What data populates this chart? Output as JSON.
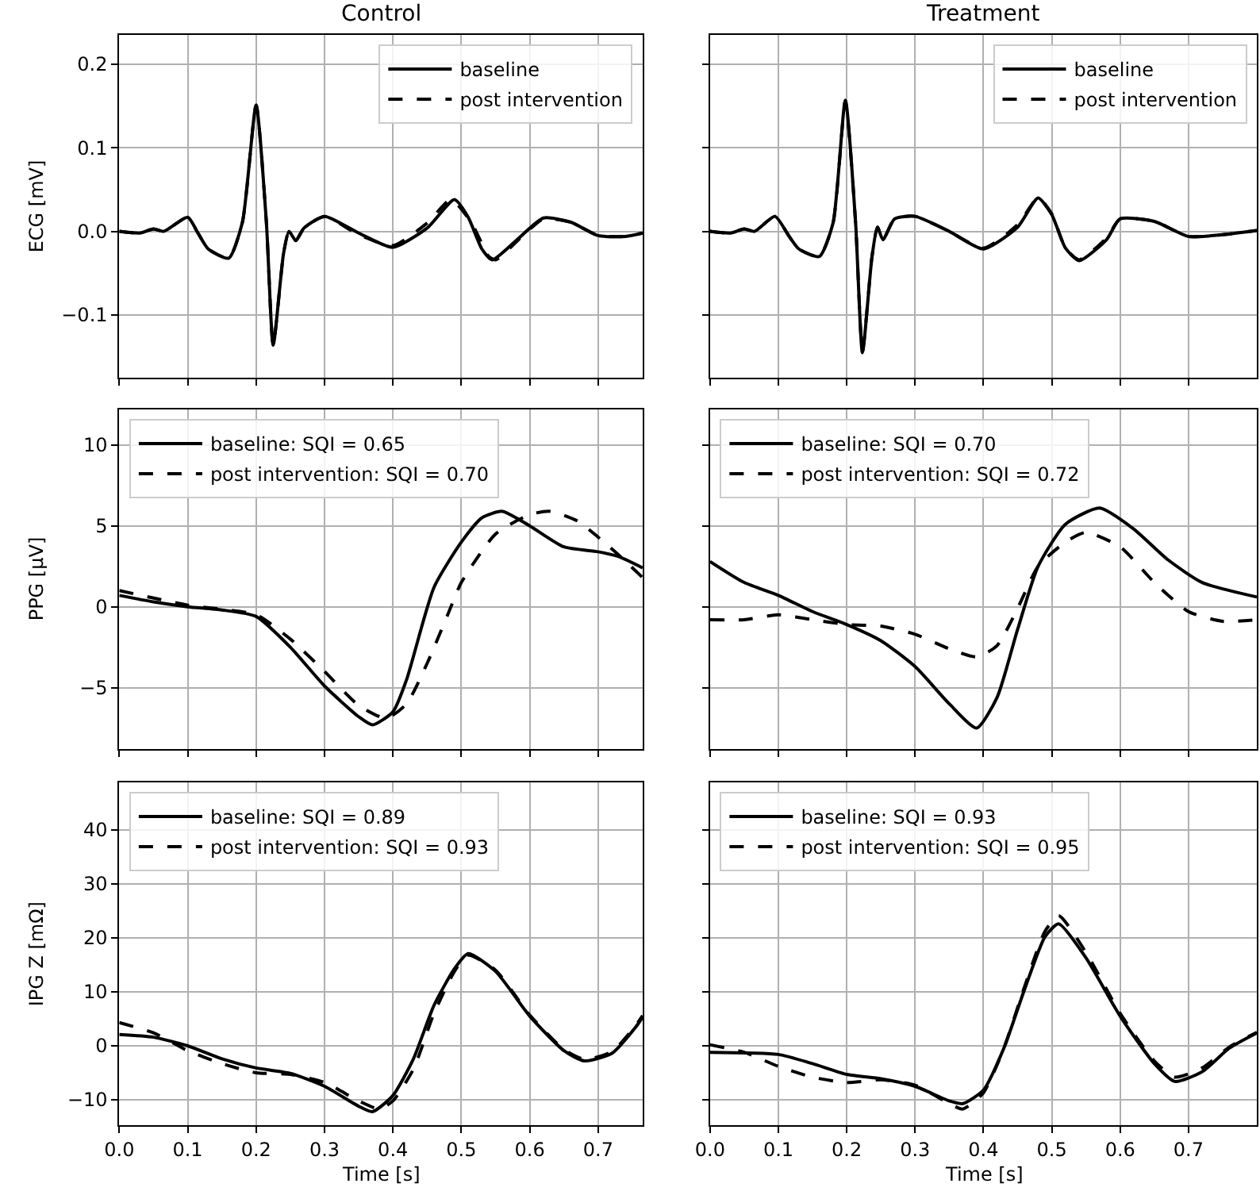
{
  "chart_data": [
    {
      "type": "line",
      "title": "Control",
      "ylabel": "ECG [mV]",
      "xlim": [
        0,
        0.765
      ],
      "ylim": [
        -0.175,
        0.235
      ],
      "xticks": [
        {
          "value": 0,
          "label": null
        },
        {
          "value": 0.1,
          "label": null
        },
        {
          "value": 0.2,
          "label": null
        },
        {
          "value": 0.3,
          "label": null
        },
        {
          "value": 0.4,
          "label": null
        },
        {
          "value": 0.5,
          "label": null
        },
        {
          "value": 0.6,
          "label": null
        },
        {
          "value": 0.7,
          "label": null
        }
      ],
      "yticks": [
        {
          "value": -0.1,
          "label": "−0.1"
        },
        {
          "value": 0,
          "label": "0.0"
        },
        0.1,
        0.2
      ],
      "grid": true,
      "legend": "top right",
      "tick_labels": "y",
      "series": [
        {
          "name": "baseline",
          "color": "#000000",
          "line_style": "solid",
          "x": [
            0,
            0.03,
            0.05,
            0.065,
            0.1,
            0.115,
            0.13,
            0.16,
            0.18,
            0.2,
            0.215,
            0.225,
            0.24,
            0.248,
            0.258,
            0.27,
            0.3,
            0.35,
            0.4,
            0.45,
            0.49,
            0.51,
            0.53,
            0.545,
            0.58,
            0.62,
            0.66,
            0.7,
            0.74,
            0.765
          ],
          "values": [
            0,
            -0.002,
            0.003,
            0,
            0.017,
            -0.002,
            -0.021,
            -0.032,
            0.011,
            0.151,
            0.011,
            -0.136,
            -0.027,
            0,
            -0.011,
            0.004,
            0.018,
            -0.002,
            -0.019,
            0.004,
            0.038,
            0.017,
            -0.021,
            -0.034,
            -0.011,
            0.016,
            0.011,
            -0.005,
            -0.006,
            -0.002
          ]
        },
        {
          "name": "post intervention",
          "color": "#000000",
          "line_style": "dashed",
          "x": [
            0,
            0.03,
            0.05,
            0.065,
            0.1,
            0.115,
            0.13,
            0.16,
            0.18,
            0.2,
            0.215,
            0.225,
            0.24,
            0.248,
            0.258,
            0.27,
            0.3,
            0.35,
            0.4,
            0.45,
            0.485,
            0.515,
            0.54,
            0.55,
            0.59,
            0.62,
            0.66,
            0.7,
            0.74,
            0.765
          ],
          "values": [
            0,
            -0.002,
            0.003,
            0,
            0.017,
            -0.002,
            -0.021,
            -0.032,
            0.011,
            0.151,
            0.011,
            -0.136,
            -0.027,
            0,
            -0.011,
            0.004,
            0.018,
            -0.004,
            -0.017,
            0.01,
            0.038,
            0.01,
            -0.03,
            -0.034,
            -0.005,
            0.015,
            0.011,
            -0.005,
            -0.006,
            -0.002
          ]
        }
      ]
    },
    {
      "type": "line",
      "title": "Treatment",
      "xlim": [
        0,
        0.8
      ],
      "ylim": [
        -0.175,
        0.235
      ],
      "xticks": [
        {
          "value": 0,
          "label": null
        },
        {
          "value": 0.1,
          "label": null
        },
        {
          "value": 0.2,
          "label": null
        },
        {
          "value": 0.3,
          "label": null
        },
        {
          "value": 0.4,
          "label": null
        },
        {
          "value": 0.5,
          "label": null
        },
        {
          "value": 0.6,
          "label": null
        },
        {
          "value": 0.7,
          "label": null
        }
      ],
      "yticks": [
        {
          "value": -0.1,
          "label": null
        },
        {
          "value": 0,
          "label": null
        },
        {
          "value": 0.1,
          "label": null
        },
        {
          "value": 0.2,
          "label": null
        }
      ],
      "grid": true,
      "legend": "top right",
      "tick_labels": false,
      "series": [
        {
          "name": "baseline",
          "color": "#000000",
          "line_style": "solid",
          "x": [
            0,
            0.03,
            0.05,
            0.065,
            0.095,
            0.115,
            0.13,
            0.16,
            0.18,
            0.198,
            0.213,
            0.223,
            0.237,
            0.245,
            0.253,
            0.27,
            0.3,
            0.35,
            0.4,
            0.45,
            0.48,
            0.5,
            0.52,
            0.54,
            0.58,
            0.6,
            0.65,
            0.7,
            0.75,
            0.8
          ],
          "values": [
            0,
            -0.002,
            0.003,
            0,
            0.018,
            -0.005,
            -0.021,
            -0.03,
            0.01,
            0.157,
            0.01,
            -0.145,
            -0.03,
            0.005,
            -0.01,
            0.015,
            0.018,
            0,
            -0.021,
            0.005,
            0.04,
            0.02,
            -0.02,
            -0.035,
            -0.01,
            0.015,
            0.012,
            -0.006,
            -0.004,
            0.001
          ]
        },
        {
          "name": "post intervention",
          "color": "#000000",
          "line_style": "dashed",
          "x": [
            0,
            0.03,
            0.05,
            0.065,
            0.095,
            0.115,
            0.13,
            0.16,
            0.18,
            0.198,
            0.213,
            0.223,
            0.237,
            0.245,
            0.253,
            0.27,
            0.3,
            0.35,
            0.4,
            0.45,
            0.48,
            0.5,
            0.52,
            0.54,
            0.58,
            0.6,
            0.65,
            0.7,
            0.75,
            0.8
          ],
          "values": [
            0,
            -0.002,
            0.003,
            0,
            0.018,
            -0.005,
            -0.021,
            -0.03,
            0.01,
            0.155,
            0.01,
            -0.143,
            -0.03,
            0.005,
            -0.01,
            0.015,
            0.018,
            0,
            -0.02,
            0.008,
            0.04,
            0.021,
            -0.02,
            -0.034,
            -0.008,
            0.015,
            0.012,
            -0.006,
            -0.004,
            0.001
          ]
        }
      ]
    },
    {
      "type": "line",
      "ylabel": "PPG [µV]",
      "xlim": [
        0,
        0.765
      ],
      "ylim": [
        -8.8,
        12.2
      ],
      "xticks": [
        {
          "value": 0,
          "label": null
        },
        {
          "value": 0.1,
          "label": null
        },
        {
          "value": 0.2,
          "label": null
        },
        {
          "value": 0.3,
          "label": null
        },
        {
          "value": 0.4,
          "label": null
        },
        {
          "value": 0.5,
          "label": null
        },
        {
          "value": 0.6,
          "label": null
        },
        {
          "value": 0.7,
          "label": null
        }
      ],
      "yticks": [
        {
          "value": -5,
          "label": "−5"
        },
        0,
        5,
        10
      ],
      "grid": true,
      "legend": "top left",
      "tick_labels": "y",
      "series": [
        {
          "name": "baseline: SQI = 0.65",
          "color": "#000000",
          "line_style": "solid",
          "x": [
            0,
            0.05,
            0.1,
            0.15,
            0.2,
            0.25,
            0.3,
            0.35,
            0.37,
            0.4,
            0.42,
            0.46,
            0.5,
            0.53,
            0.56,
            0.6,
            0.65,
            0.7,
            0.73,
            0.765
          ],
          "values": [
            0.7,
            0.3,
            0,
            -0.2,
            -0.6,
            -2.5,
            -4.9,
            -6.8,
            -7.3,
            -6.5,
            -4.5,
            1.2,
            4,
            5.5,
            5.9,
            5,
            3.7,
            3.4,
            3.1,
            2.4
          ]
        },
        {
          "name": "post intervention: SQI = 0.70",
          "color": "#000000",
          "line_style": "dashed",
          "x": [
            0,
            0.1,
            0.2,
            0.25,
            0.3,
            0.35,
            0.39,
            0.42,
            0.45,
            0.48,
            0.5,
            0.55,
            0.6,
            0.63,
            0.67,
            0.7,
            0.73,
            0.765
          ],
          "values": [
            1,
            0.1,
            -0.5,
            -2,
            -4,
            -6.1,
            -6.9,
            -6,
            -3.5,
            -0.5,
            1.5,
            4.5,
            5.7,
            5.9,
            5.3,
            4.3,
            3.2,
            1.8
          ]
        }
      ]
    },
    {
      "type": "line",
      "xlim": [
        0,
        0.8
      ],
      "ylim": [
        -8.8,
        12.2
      ],
      "xticks": [
        {
          "value": 0,
          "label": null
        },
        {
          "value": 0.1,
          "label": null
        },
        {
          "value": 0.2,
          "label": null
        },
        {
          "value": 0.3,
          "label": null
        },
        {
          "value": 0.4,
          "label": null
        },
        {
          "value": 0.5,
          "label": null
        },
        {
          "value": 0.6,
          "label": null
        },
        {
          "value": 0.7,
          "label": null
        }
      ],
      "yticks": [
        {
          "value": -5,
          "label": null
        },
        {
          "value": 0,
          "label": null
        },
        {
          "value": 5,
          "label": null
        },
        {
          "value": 10,
          "label": null
        }
      ],
      "grid": true,
      "legend": "top left",
      "tick_labels": false,
      "series": [
        {
          "name": "baseline: SQI = 0.70",
          "color": "#000000",
          "line_style": "solid",
          "x": [
            0,
            0.05,
            0.1,
            0.15,
            0.2,
            0.25,
            0.3,
            0.35,
            0.39,
            0.42,
            0.45,
            0.48,
            0.52,
            0.57,
            0.62,
            0.67,
            0.72,
            0.8
          ],
          "values": [
            2.8,
            1.5,
            0.7,
            -0.3,
            -1.1,
            -2.1,
            -3.7,
            -6,
            -7.5,
            -5.6,
            -1.4,
            2.5,
            5.1,
            6.1,
            4.8,
            2.9,
            1.5,
            0.6
          ]
        },
        {
          "name": "post intervention: SQI = 0.72",
          "color": "#000000",
          "line_style": "dashed",
          "x": [
            0,
            0.05,
            0.1,
            0.15,
            0.2,
            0.25,
            0.3,
            0.35,
            0.39,
            0.42,
            0.45,
            0.48,
            0.52,
            0.55,
            0.6,
            0.65,
            0.7,
            0.75,
            0.8
          ],
          "values": [
            -0.8,
            -0.8,
            -0.5,
            -0.8,
            -1.1,
            -1.2,
            -1.7,
            -2.6,
            -3.1,
            -2.4,
            -0.1,
            2.5,
            4,
            4.6,
            3.7,
            1.5,
            -0.3,
            -0.9,
            -0.8
          ]
        }
      ]
    },
    {
      "type": "line",
      "ylabel": "IPG Z [mΩ]",
      "xlabel": "Time [s]",
      "xlim": [
        0,
        0.765
      ],
      "ylim": [
        -14.7,
        48.8
      ],
      "xticks": [
        {
          "value": 0,
          "label": "0.0"
        },
        0.1,
        0.2,
        0.3,
        0.4,
        0.5,
        0.6,
        0.7
      ],
      "yticks": [
        {
          "value": -10,
          "label": "−10"
        },
        0,
        10,
        20,
        30,
        40
      ],
      "grid": true,
      "legend": "top left",
      "series": [
        {
          "name": "baseline: SQI = 0.89",
          "color": "#000000",
          "line_style": "solid",
          "x": [
            0,
            0.05,
            0.1,
            0.15,
            0.2,
            0.25,
            0.3,
            0.35,
            0.37,
            0.4,
            0.43,
            0.46,
            0.49,
            0.51,
            0.55,
            0.6,
            0.65,
            0.68,
            0.72,
            0.755,
            0.765
          ],
          "values": [
            2.1,
            1.6,
            0,
            -2.4,
            -4.1,
            -5.1,
            -7.5,
            -11.2,
            -12.2,
            -9.2,
            -2.4,
            7.5,
            14.3,
            17.1,
            13.8,
            5.5,
            -0.9,
            -2.8,
            -1.4,
            3.5,
            5.3
          ]
        },
        {
          "name": "post intervention: SQI = 0.93",
          "color": "#000000",
          "line_style": "dashed",
          "x": [
            0,
            0.05,
            0.1,
            0.15,
            0.2,
            0.25,
            0.3,
            0.35,
            0.38,
            0.4,
            0.43,
            0.46,
            0.49,
            0.51,
            0.55,
            0.6,
            0.65,
            0.68,
            0.72,
            0.755,
            0.765
          ],
          "values": [
            4.3,
            2.4,
            -0.9,
            -3.3,
            -5,
            -5.3,
            -6.8,
            -10.2,
            -11.7,
            -10.2,
            -4.3,
            6,
            13.8,
            16.8,
            14,
            5.7,
            -0.7,
            -2.5,
            -1.1,
            3.8,
            5.6
          ]
        }
      ]
    },
    {
      "type": "line",
      "xlabel": "Time [s]",
      "xlim": [
        0,
        0.8
      ],
      "ylim": [
        -14.7,
        48.8
      ],
      "xticks": [
        {
          "value": 0,
          "label": "0.0"
        },
        0.1,
        0.2,
        0.3,
        0.4,
        0.5,
        0.6,
        0.7
      ],
      "yticks": [
        {
          "value": -10,
          "label": null
        },
        {
          "value": 0,
          "label": null
        },
        {
          "value": 10,
          "label": null
        },
        {
          "value": 20,
          "label": null
        },
        {
          "value": 30,
          "label": null
        },
        {
          "value": 40,
          "label": null
        }
      ],
      "grid": true,
      "legend": "top left",
      "tick_labels": "x",
      "series": [
        {
          "name": "baseline: SQI = 0.93",
          "color": "#000000",
          "line_style": "solid",
          "x": [
            0,
            0.1,
            0.15,
            0.2,
            0.25,
            0.3,
            0.35,
            0.37,
            0.4,
            0.43,
            0.46,
            0.49,
            0.51,
            0.55,
            0.6,
            0.65,
            0.68,
            0.72,
            0.76,
            0.8
          ],
          "values": [
            -1.2,
            -1.6,
            -3.3,
            -5.3,
            -6.1,
            -7.5,
            -10.2,
            -10.7,
            -8.2,
            -0.4,
            10.4,
            20.2,
            22.6,
            16.3,
            5.5,
            -3.3,
            -6.6,
            -4.8,
            -0.4,
            2.4
          ]
        },
        {
          "name": "post intervention: SQI = 0.95",
          "color": "#000000",
          "line_style": "dashed",
          "x": [
            0,
            0.05,
            0.1,
            0.15,
            0.2,
            0.25,
            0.3,
            0.35,
            0.37,
            0.4,
            0.43,
            0.46,
            0.49,
            0.51,
            0.55,
            0.6,
            0.65,
            0.68,
            0.72,
            0.76,
            0.8
          ],
          "values": [
            0.2,
            -1.2,
            -3.8,
            -5.8,
            -6.8,
            -6.3,
            -7.3,
            -10.7,
            -11.7,
            -8.7,
            -0.4,
            10.9,
            21.2,
            24.1,
            17.3,
            6,
            -2.8,
            -5.8,
            -4.1,
            -0.2,
            2.5
          ]
        }
      ]
    }
  ]
}
